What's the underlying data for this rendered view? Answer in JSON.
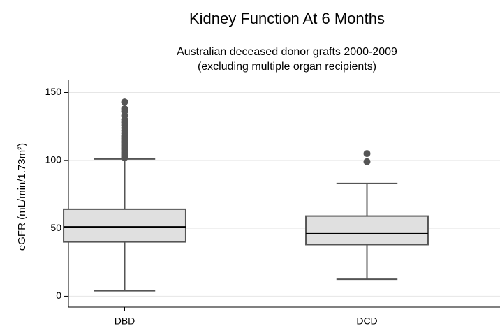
{
  "chart_data": {
    "type": "box",
    "title": "Kidney Function At 6 Months",
    "subtitle": [
      "Australian deceased donor grafts 2000-2009",
      "(excluding multiple organ recipients)"
    ],
    "y_label": "eGFR (mL/min/1.73m²)",
    "categories": [
      "DBD",
      "DCD"
    ],
    "boxes": [
      {
        "whislo": 4,
        "q1": 40,
        "med": 51,
        "q3": 64,
        "whishi": 101,
        "fliers": [
          102,
          103,
          104,
          105,
          106,
          107,
          108,
          109,
          110,
          111,
          112,
          113,
          114,
          115,
          116,
          117,
          118,
          120,
          122,
          124,
          126,
          128,
          130,
          133,
          136,
          138,
          143
        ]
      },
      {
        "whislo": 12.5,
        "q1": 38,
        "med": 46,
        "q3": 59,
        "whishi": 83,
        "fliers": [
          99,
          105
        ]
      }
    ],
    "color": "#e0e0e0",
    "edge_color": "#555555",
    "median_color": "#000000",
    "ylim": [
      -8,
      159
    ],
    "yticks": [
      0,
      50,
      100,
      150
    ],
    "grid": true
  }
}
